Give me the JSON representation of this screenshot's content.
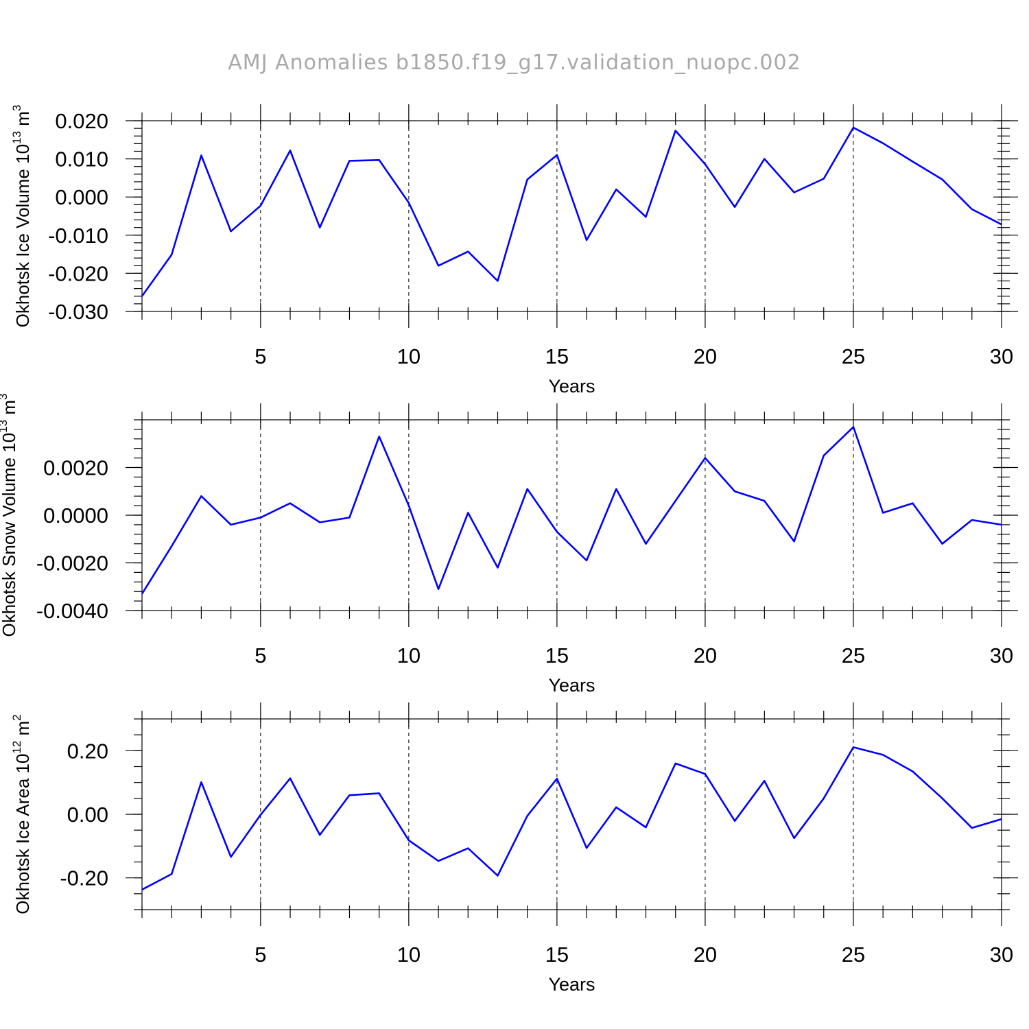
{
  "chart_data": {
    "title": "AMJ Anomalies b1850.f19_g17.validation_nuopc.002",
    "line_color": "#0000ff",
    "x": [
      1,
      2,
      3,
      4,
      5,
      6,
      7,
      8,
      9,
      10,
      11,
      12,
      13,
      14,
      15,
      16,
      17,
      18,
      19,
      20,
      21,
      22,
      23,
      24,
      25,
      26,
      27,
      28,
      29,
      30
    ],
    "xlim": [
      1,
      30
    ],
    "xticks": [
      5,
      10,
      15,
      20,
      25,
      30
    ],
    "xtick_labels": [
      "5",
      "10",
      "15",
      "20",
      "25",
      "30"
    ],
    "grid_x": [
      5,
      10,
      15,
      20,
      25
    ],
    "panels": [
      {
        "type": "line",
        "xlabel": "Years",
        "ylabel_main": "Okhotsk Ice Volume 10",
        "ylabel_sup": "13",
        "ylabel_unit": " m",
        "ylabel_unit_sup": "3",
        "ylim": [
          -0.03,
          0.02
        ],
        "yticks": [
          -0.03,
          -0.02,
          -0.01,
          0.0,
          0.01,
          0.02
        ],
        "ytick_labels": [
          "-0.030",
          "-0.020",
          "-0.010",
          "0.000",
          "0.010",
          "0.020"
        ],
        "minor_step": 0.002,
        "values": [
          -0.026,
          -0.0151,
          0.0109,
          -0.009,
          -0.0023,
          0.0122,
          -0.008,
          0.0095,
          0.0097,
          -0.0015,
          -0.018,
          -0.0143,
          -0.022,
          0.0046,
          0.011,
          -0.0113,
          0.002,
          -0.0052,
          0.0174,
          0.0086,
          -0.0026,
          0.01,
          0.0012,
          0.0048,
          0.0182,
          0.0141,
          0.0093,
          0.0046,
          -0.0032,
          -0.0072
        ]
      },
      {
        "type": "line",
        "xlabel": "Years",
        "ylabel_main": "Okhotsk Snow Volume 10",
        "ylabel_sup": "13",
        "ylabel_unit": " m",
        "ylabel_unit_sup": "3",
        "ylim": [
          -0.004,
          0.004
        ],
        "yticks": [
          -0.004,
          -0.002,
          0.0,
          0.002
        ],
        "ytick_labels": [
          "-0.0040",
          "-0.0020",
          "0.0000",
          "0.0020"
        ],
        "minor_step": 0.0004,
        "values": [
          -0.0033,
          -0.0013,
          0.0008,
          -0.0004,
          -0.0001,
          0.0005,
          -0.0003,
          -0.0001,
          0.0033,
          0.0004,
          -0.0031,
          0.0001,
          -0.0022,
          0.0011,
          -0.0007,
          -0.0019,
          0.0011,
          -0.0012,
          0.0006,
          0.0024,
          0.001,
          0.0006,
          -0.0011,
          0.0025,
          0.0037,
          0.0001,
          0.0005,
          -0.0012,
          -0.0002,
          -0.0004
        ]
      },
      {
        "type": "line",
        "xlabel": "Years",
        "ylabel_main": "Okhotsk Ice Area 10",
        "ylabel_sup": "12",
        "ylabel_unit": " m",
        "ylabel_unit_sup": "2",
        "ylim": [
          -0.3,
          0.3
        ],
        "yticks": [
          -0.2,
          0.0,
          0.2
        ],
        "ytick_labels": [
          "-0.20",
          "0.00",
          "0.20"
        ],
        "minor_step": 0.05,
        "values": [
          -0.237,
          -0.188,
          0.101,
          -0.134,
          -0.002,
          0.113,
          -0.065,
          0.06,
          0.066,
          -0.082,
          -0.147,
          -0.107,
          -0.193,
          -0.005,
          0.112,
          -0.106,
          0.022,
          -0.041,
          0.16,
          0.127,
          -0.021,
          0.105,
          -0.075,
          0.05,
          0.211,
          0.187,
          0.135,
          0.05,
          -0.043,
          -0.015
        ]
      }
    ]
  }
}
